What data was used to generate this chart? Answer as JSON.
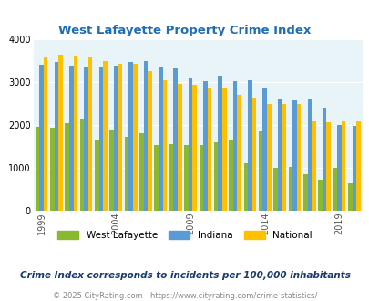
{
  "title": "West Lafayette Property Crime Index",
  "subtitle": "Crime Index corresponds to incidents per 100,000 inhabitants",
  "footer": "© 2025 CityRating.com - https://www.cityrating.com/crime-statistics/",
  "years": [
    1999,
    2000,
    2001,
    2002,
    2003,
    2004,
    2005,
    2006,
    2007,
    2008,
    2009,
    2010,
    2011,
    2012,
    2013,
    2014,
    2015,
    2016,
    2017,
    2018,
    2019,
    2020
  ],
  "west_lafayette": [
    1950,
    1940,
    2050,
    2150,
    1630,
    1870,
    1730,
    1800,
    1540,
    1550,
    1540,
    1540,
    1600,
    1640,
    1110,
    1850,
    1000,
    1020,
    860,
    730,
    1010,
    640
  ],
  "indiana": [
    3400,
    3460,
    3390,
    3350,
    3360,
    3390,
    3460,
    3480,
    3340,
    3310,
    3100,
    3030,
    3150,
    3030,
    3040,
    2840,
    2610,
    2570,
    2590,
    2400,
    1990,
    1970
  ],
  "national": [
    3600,
    3640,
    3610,
    3580,
    3490,
    3420,
    3430,
    3250,
    3050,
    2950,
    2940,
    2880,
    2850,
    2700,
    2630,
    2490,
    2480,
    2480,
    2080,
    2070,
    2080,
    2090
  ],
  "color_wl": "#8ab830",
  "color_in": "#5b9bd5",
  "color_na": "#ffc000",
  "bg_color": "#ddeef4",
  "plot_bg": "#e8f4f8",
  "title_color": "#1f6eb5",
  "subtitle_color": "#1a3a6b",
  "footer_color": "#888888",
  "ylim": [
    0,
    4000
  ],
  "yticks": [
    0,
    1000,
    2000,
    3000,
    4000
  ],
  "tick_years": [
    1999,
    2004,
    2009,
    2014,
    2019
  ]
}
